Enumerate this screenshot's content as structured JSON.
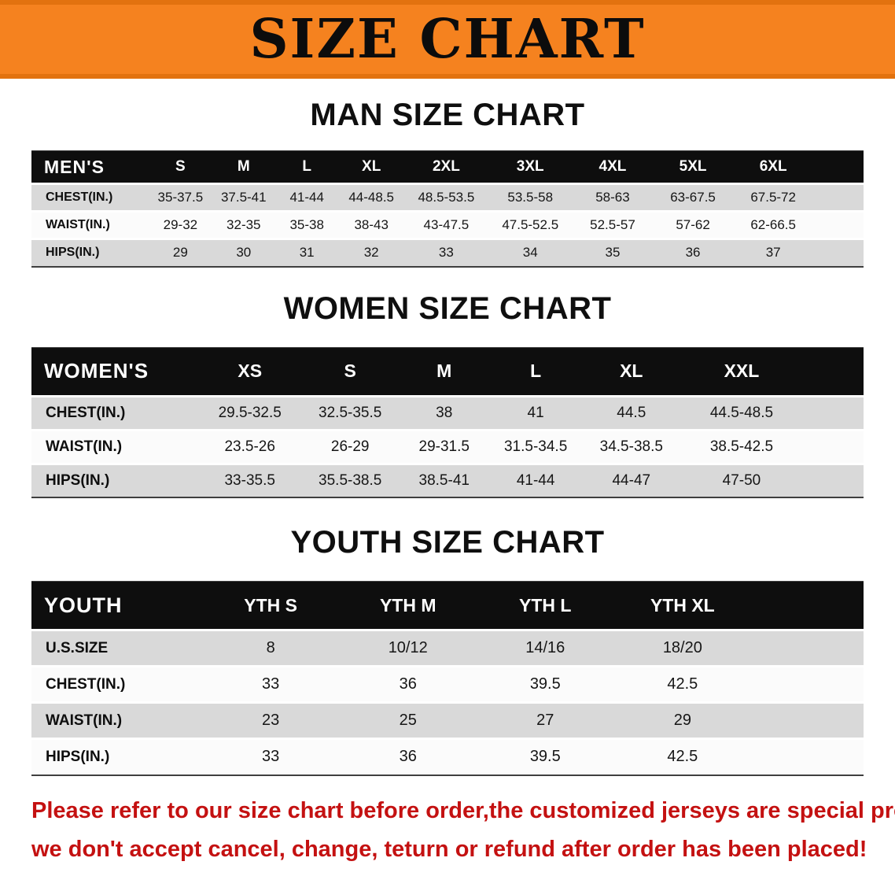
{
  "banner": {
    "title": "SIZE CHART",
    "background": "#f5821f"
  },
  "sections": [
    {
      "id": "men",
      "heading": "MAN SIZE CHART",
      "table": {
        "header": [
          "MEN'S",
          "S",
          "M",
          "L",
          "XL",
          "2XL",
          "3XL",
          "4XL",
          "5XL",
          "6XL"
        ],
        "rows": [
          [
            "CHEST(IN.)",
            "35-37.5",
            "37.5-41",
            "41-44",
            "44-48.5",
            "48.5-53.5",
            "53.5-58",
            "58-63",
            "63-67.5",
            "67.5-72"
          ],
          [
            "WAIST(IN.)",
            "29-32",
            "32-35",
            "35-38",
            "38-43",
            "43-47.5",
            "47.5-52.5",
            "52.5-57",
            "57-62",
            "62-66.5"
          ],
          [
            "HIPS(IN.)",
            "29",
            "30",
            "31",
            "32",
            "33",
            "34",
            "35",
            "36",
            "37"
          ]
        ]
      }
    },
    {
      "id": "women",
      "heading": "WOMEN SIZE CHART",
      "table": {
        "header": [
          "WOMEN'S",
          "XS",
          "S",
          "M",
          "L",
          "XL",
          "XXL"
        ],
        "rows": [
          [
            "CHEST(IN.)",
            "29.5-32.5",
            "32.5-35.5",
            "38",
            "41",
            "44.5",
            "44.5-48.5"
          ],
          [
            "WAIST(IN.)",
            "23.5-26",
            "26-29",
            "29-31.5",
            "31.5-34.5",
            "34.5-38.5",
            "38.5-42.5"
          ],
          [
            "HIPS(IN.)",
            "33-35.5",
            "35.5-38.5",
            "38.5-41",
            "41-44",
            "44-47",
            "47-50"
          ]
        ]
      }
    },
    {
      "id": "youth",
      "heading": "YOUTH SIZE CHART",
      "table": {
        "header": [
          "YOUTH",
          "YTH S",
          "YTH M",
          "YTH L",
          "YTH XL"
        ],
        "rows": [
          [
            "U.S.SIZE",
            "8",
            "10/12",
            "14/16",
            "18/20"
          ],
          [
            "CHEST(IN.)",
            "33",
            "36",
            "39.5",
            "42.5"
          ],
          [
            "WAIST(IN.)",
            "23",
            "25",
            "27",
            "29"
          ],
          [
            "HIPS(IN.)",
            "33",
            "36",
            "39.5",
            "42.5"
          ]
        ]
      }
    }
  ],
  "footer": {
    "color": "#c41111",
    "line1": "Please refer to our size chart before order,the customized jerseys are special products,",
    "line2": "we don't accept cancel, change, teturn or refund after order has been placed!"
  }
}
